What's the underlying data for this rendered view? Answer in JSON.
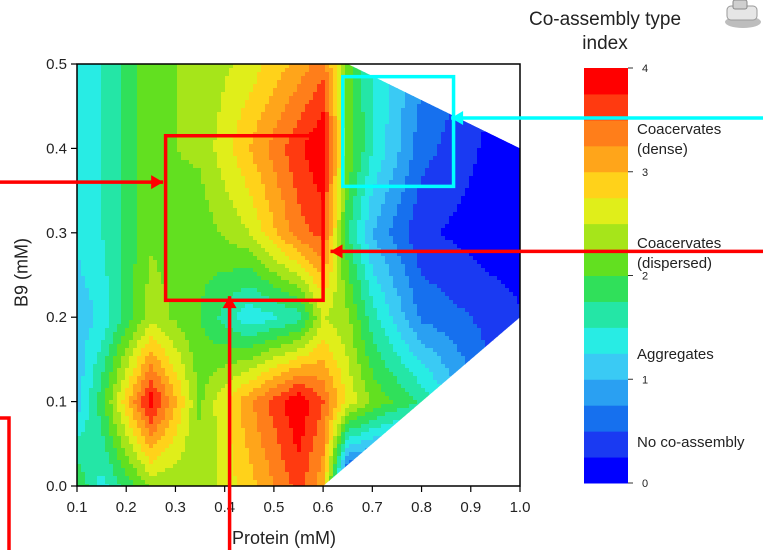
{
  "chart_data": {
    "type": "heatmap",
    "subtype": "filled-contour",
    "xlabel": "Protein (mM)",
    "ylabel": "B9 (mM)",
    "xlim": [
      0.1,
      1.0
    ],
    "ylim": [
      0.0,
      0.5
    ],
    "x_ticks": [
      "0.1",
      "0.2",
      "0.3",
      "0.4",
      "0.5",
      "0.6",
      "0.7",
      "0.8",
      "0.9",
      "1.0"
    ],
    "y_ticks": [
      "0.0",
      "0.1",
      "0.2",
      "0.3",
      "0.4",
      "0.5"
    ],
    "colorbar": {
      "title": "Co-assembly type index",
      "title_lines": [
        "Co-assembly type",
        "index"
      ],
      "range": [
        0,
        4
      ],
      "ticks": [
        "0",
        "1",
        "2",
        "3",
        "4"
      ],
      "categories": [
        {
          "label": "Coacervates (dense)",
          "lines": [
            "Coacervates",
            "(dense)"
          ],
          "index": 3.5
        },
        {
          "label": "Coacervates (dispersed)",
          "lines": [
            "Coacervates",
            "(dispersed)"
          ],
          "index": 2.5
        },
        {
          "label": "Aggregates",
          "lines": [
            "Aggregates"
          ],
          "index": 1.5
        },
        {
          "label": "No co-assembly",
          "lines": [
            "No co-assembly"
          ],
          "index": 0.5
        }
      ]
    },
    "grid_x": [
      0.1,
      0.15,
      0.25,
      0.35,
      0.45,
      0.55,
      0.6,
      0.65,
      0.7,
      0.8,
      1.0
    ],
    "grid_y": [
      0.0,
      0.1,
      0.2,
      0.3,
      0.4,
      0.5
    ],
    "grid_z": [
      [
        2.0,
        1.4,
        2.3,
        2.3,
        2.9,
        3.6,
        3.1,
        null,
        null,
        null,
        null
      ],
      [
        1.1,
        1.9,
        3.9,
        2.2,
        3.2,
        4.0,
        3.5,
        2.7,
        2.2,
        1.7,
        null
      ],
      [
        1.1,
        1.3,
        2.4,
        2.0,
        1.3,
        1.6,
        2.5,
        2.3,
        1.6,
        0.7,
        0.3
      ],
      [
        1.3,
        1.5,
        2.2,
        2.1,
        2.5,
        3.4,
        3.6,
        1.8,
        1.0,
        0.3,
        0.0
      ],
      [
        1.3,
        1.5,
        2.2,
        2.3,
        3.0,
        3.7,
        4.0,
        2.2,
        1.5,
        0.6,
        0.0
      ],
      [
        1.3,
        1.5,
        2.2,
        2.3,
        2.6,
        3.1,
        3.4,
        2.1,
        1.5,
        0.8,
        0.1
      ]
    ],
    "annotations": [
      {
        "type": "box",
        "color": "#ff0000",
        "x": [
          0.28,
          0.6
        ],
        "y": [
          0.22,
          0.415
        ]
      },
      {
        "type": "box",
        "color": "#00ffff",
        "x": [
          0.64,
          0.865
        ],
        "y": [
          0.355,
          0.485
        ]
      },
      {
        "type": "arrow",
        "color": "#ff0000",
        "direction": "right",
        "to": [
          0.275,
          0.36
        ]
      },
      {
        "type": "arrow",
        "color": "#ff0000",
        "direction": "left",
        "to": [
          0.615,
          0.278
        ]
      },
      {
        "type": "arrow",
        "color": "#ff0000",
        "direction": "up",
        "to": [
          0.41,
          0.225
        ]
      },
      {
        "type": "arrow",
        "color": "#00ffff",
        "direction": "left",
        "to": [
          0.86,
          0.436
        ]
      }
    ]
  },
  "colors": {
    "scale": [
      "#0000ff",
      "#1a3af2",
      "#1670ee",
      "#2aa0f2",
      "#3acaf4",
      "#28ece4",
      "#24e6a6",
      "#30e05a",
      "#62e020",
      "#a6e51a",
      "#e0ee1a",
      "#ffd21a",
      "#ffa51a",
      "#ff7e1a",
      "#ff3a10",
      "#ff0000"
    ],
    "highlight_red": "#ff0000",
    "highlight_cyan": "#00ffff"
  },
  "icon": "microscope-icon"
}
